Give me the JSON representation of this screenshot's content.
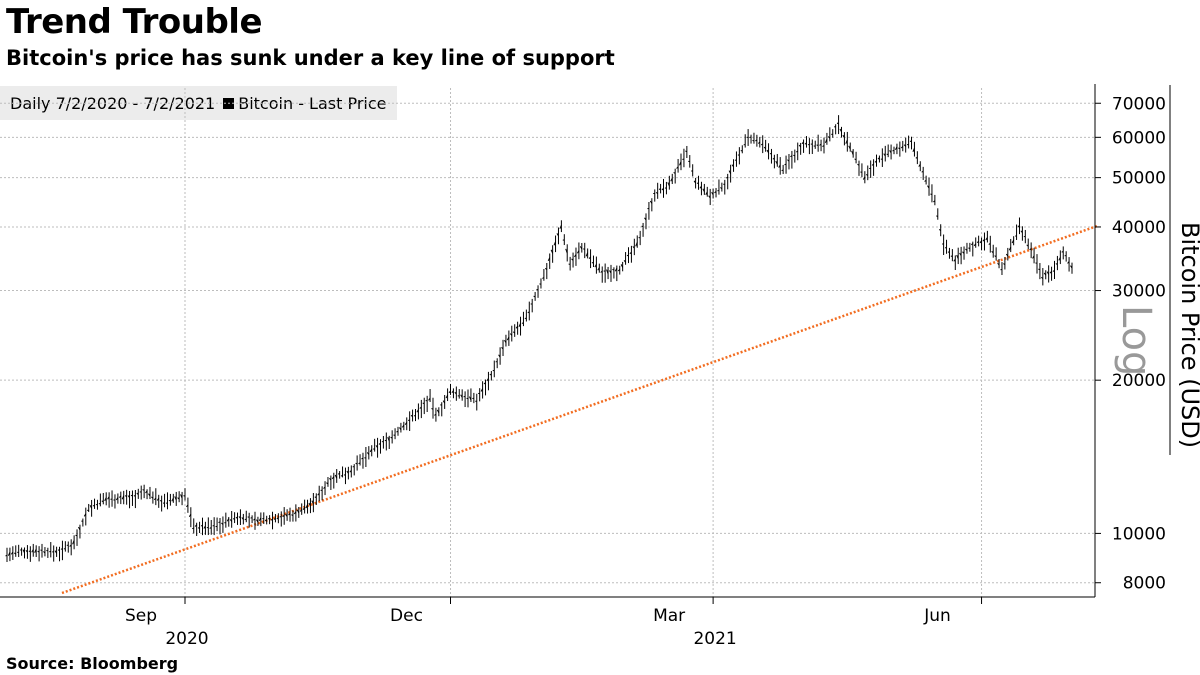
{
  "header": {
    "title": "Trend Trouble",
    "subtitle": "Bitcoin's price has sunk under a key line of support"
  },
  "legend": {
    "range_label": "Daily 7/2/2020 - 7/2/2021",
    "series_label": "Bitcoin - Last Price"
  },
  "footer": {
    "source": "Source: Bloomberg"
  },
  "chart_data": {
    "type": "line",
    "style": "daily high-low bars",
    "scale": "log",
    "ylabel": "Bitcoin Price (USD)",
    "scale_label": "Log",
    "ylim": [
      7500,
      75000
    ],
    "yticks": [
      8000,
      10000,
      20000,
      30000,
      40000,
      50000,
      60000,
      70000
    ],
    "xlim": [
      "2020-07-02",
      "2021-07-02"
    ],
    "xticks": [
      {
        "date": "2020-09-01",
        "label": "Sep"
      },
      {
        "date": "2020-12-01",
        "label": "Dec"
      },
      {
        "date": "2021-03-01",
        "label": "Mar"
      },
      {
        "date": "2021-06-01",
        "label": "Jun"
      }
    ],
    "year_labels": [
      {
        "date": "2020-09-01",
        "label": "2020"
      },
      {
        "date": "2021-03-01",
        "label": "2021"
      }
    ],
    "grid": true,
    "series": [
      {
        "name": "Bitcoin - Last Price",
        "color": "#000000",
        "points": [
          [
            "2020-07-02",
            9100
          ],
          [
            "2020-07-10",
            9250
          ],
          [
            "2020-07-20",
            9200
          ],
          [
            "2020-07-25",
            9600
          ],
          [
            "2020-07-30",
            11200
          ],
          [
            "2020-08-05",
            11700
          ],
          [
            "2020-08-15",
            11800
          ],
          [
            "2020-08-18",
            12100
          ],
          [
            "2020-08-25",
            11500
          ],
          [
            "2020-09-01",
            11900
          ],
          [
            "2020-09-04",
            10300
          ],
          [
            "2020-09-10",
            10300
          ],
          [
            "2020-09-20",
            10800
          ],
          [
            "2020-09-25",
            10600
          ],
          [
            "2020-10-01",
            10700
          ],
          [
            "2020-10-08",
            10900
          ],
          [
            "2020-10-15",
            11500
          ],
          [
            "2020-10-21",
            12800
          ],
          [
            "2020-10-28",
            13300
          ],
          [
            "2020-11-05",
            14700
          ],
          [
            "2020-11-10",
            15300
          ],
          [
            "2020-11-17",
            16700
          ],
          [
            "2020-11-24",
            18400
          ],
          [
            "2020-11-26",
            17000
          ],
          [
            "2020-12-01",
            19000
          ],
          [
            "2020-12-10",
            18300
          ],
          [
            "2020-12-16",
            21000
          ],
          [
            "2020-12-20",
            23800
          ],
          [
            "2020-12-27",
            26500
          ],
          [
            "2021-01-02",
            32000
          ],
          [
            "2021-01-08",
            40000
          ],
          [
            "2021-01-11",
            34000
          ],
          [
            "2021-01-15",
            36500
          ],
          [
            "2021-01-22",
            32500
          ],
          [
            "2021-01-28",
            33000
          ],
          [
            "2021-02-03",
            37000
          ],
          [
            "2021-02-09",
            46500
          ],
          [
            "2021-02-14",
            48500
          ],
          [
            "2021-02-20",
            56000
          ],
          [
            "2021-02-23",
            49000
          ],
          [
            "2021-02-28",
            46000
          ],
          [
            "2021-03-05",
            48500
          ],
          [
            "2021-03-13",
            60000
          ],
          [
            "2021-03-18",
            58000
          ],
          [
            "2021-03-25",
            52000
          ],
          [
            "2021-04-01",
            58500
          ],
          [
            "2021-04-08",
            58000
          ],
          [
            "2021-04-13",
            63500
          ],
          [
            "2021-04-18",
            56000
          ],
          [
            "2021-04-22",
            50000
          ],
          [
            "2021-04-26",
            54000
          ],
          [
            "2021-05-03",
            57000
          ],
          [
            "2021-05-08",
            58500
          ],
          [
            "2021-05-13",
            49500
          ],
          [
            "2021-05-16",
            45000
          ],
          [
            "2021-05-19",
            37000
          ],
          [
            "2021-05-23",
            34500
          ],
          [
            "2021-05-28",
            36500
          ],
          [
            "2021-06-03",
            38000
          ],
          [
            "2021-06-08",
            33000
          ],
          [
            "2021-06-14",
            40000
          ],
          [
            "2021-06-18",
            36000
          ],
          [
            "2021-06-22",
            32000
          ],
          [
            "2021-06-26",
            33000
          ],
          [
            "2021-06-29",
            35500
          ],
          [
            "2021-07-02",
            33500
          ]
        ]
      },
      {
        "name": "trend line",
        "color": "#f26d21",
        "style": "dotted",
        "points": [
          [
            "2020-07-02",
            7500
          ],
          [
            "2021-07-02",
            38500
          ]
        ]
      }
    ]
  }
}
